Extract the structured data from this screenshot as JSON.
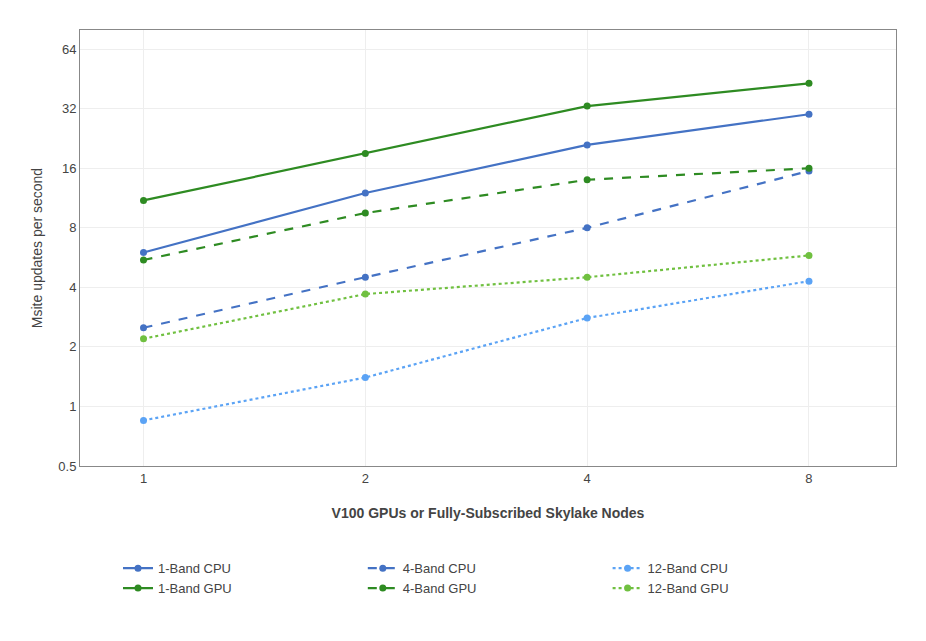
{
  "chart_data": {
    "type": "line",
    "x": [
      1,
      2,
      4,
      8
    ],
    "series": [
      {
        "name": "1-Band CPU",
        "color": "#4472C4",
        "line_style": "solid",
        "marker": "circle",
        "values": [
          6.0,
          12.0,
          21.0,
          30.0
        ]
      },
      {
        "name": "4-Band CPU",
        "color": "#4472C4",
        "line_style": "dash",
        "marker": "circle",
        "values": [
          2.5,
          4.5,
          8.0,
          15.5
        ]
      },
      {
        "name": "12-Band CPU",
        "color": "#5BA3F5",
        "line_style": "dot",
        "marker": "circle",
        "values": [
          0.85,
          1.4,
          2.8,
          4.3
        ]
      },
      {
        "name": "1-Band GPU",
        "color": "#2E8B22",
        "line_style": "solid",
        "marker": "circle",
        "values": [
          11.0,
          19.0,
          33.0,
          43.0
        ]
      },
      {
        "name": "4-Band GPU",
        "color": "#2E8B22",
        "line_style": "dash",
        "marker": "circle",
        "values": [
          5.5,
          9.5,
          14.0,
          16.0
        ]
      },
      {
        "name": "12-Band GPU",
        "color": "#70C040",
        "line_style": "dot",
        "marker": "circle",
        "values": [
          2.2,
          3.7,
          4.5,
          5.8
        ]
      }
    ],
    "x_label": "V100 GPUs or Fully-Subscribed Skylake Nodes",
    "y_label": "Msite updates per second",
    "log": true,
    "xlim": [
      0.82,
      10.5
    ],
    "xticks": [
      1,
      2,
      4,
      8
    ],
    "ylim": [
      0.5,
      80
    ],
    "yticks": [
      0.5,
      1,
      2,
      4,
      8,
      16,
      32,
      64
    ],
    "grid": true,
    "legend": "bottom"
  }
}
